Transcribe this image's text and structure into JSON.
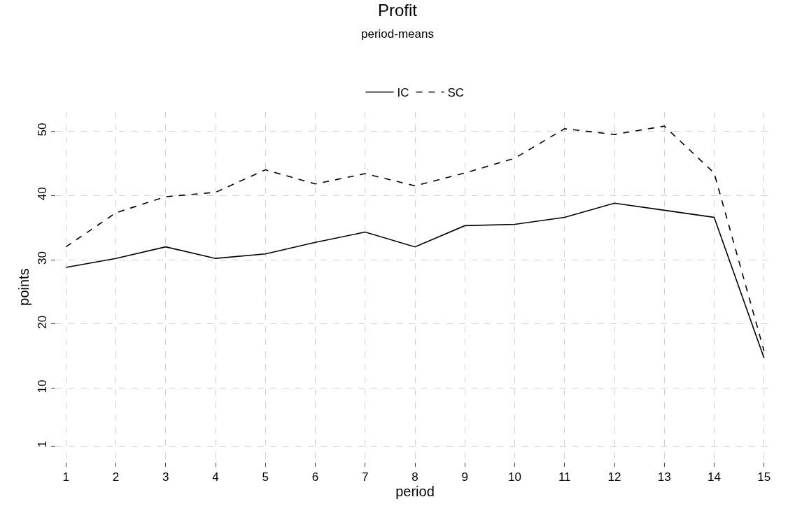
{
  "chart_data": {
    "type": "line",
    "title": "Profit",
    "subtitle": "period-means",
    "xlabel": "period",
    "ylabel": "points",
    "x": [
      1,
      2,
      3,
      4,
      5,
      6,
      7,
      8,
      9,
      10,
      11,
      12,
      13,
      14,
      15
    ],
    "series": [
      {
        "name": "IC",
        "color": "#000000",
        "line_style": "solid",
        "values": [
          28.8,
          30.2,
          32.0,
          30.2,
          30.9,
          32.7,
          34.3,
          32.0,
          35.3,
          35.5,
          36.6,
          38.8,
          37.7,
          36.6,
          14.7
        ]
      },
      {
        "name": "SC",
        "color": "#000000",
        "line_style": "dashed",
        "values": [
          32.0,
          37.3,
          39.8,
          40.5,
          44.0,
          41.8,
          43.4,
          41.5,
          43.5,
          45.8,
          50.4,
          49.5,
          50.8,
          43.5,
          15.8
        ]
      }
    ],
    "xlim": [
      0.8,
      15.2
    ],
    "xticks": [
      1,
      2,
      3,
      4,
      5,
      6,
      7,
      8,
      9,
      10,
      11,
      12,
      13,
      14,
      15
    ],
    "ylim": [
      -1.5,
      53
    ],
    "yticks": [
      1,
      10,
      20,
      30,
      40,
      50
    ],
    "grid": true,
    "legend": "top",
    "marker": "none"
  }
}
